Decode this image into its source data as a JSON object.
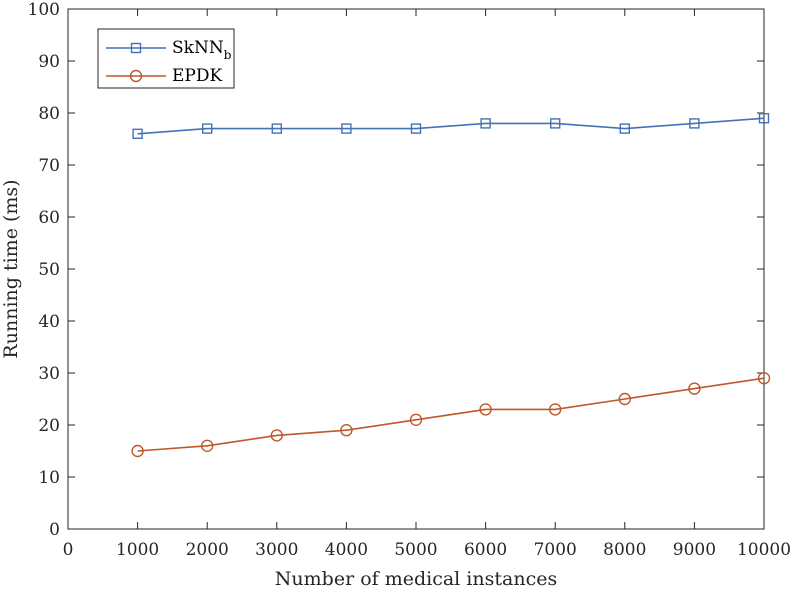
{
  "chart_data": {
    "type": "line",
    "xlabel": "Number of medical instances",
    "ylabel": "Running time (ms)",
    "xlim": [
      0,
      10000
    ],
    "ylim": [
      0,
      100
    ],
    "x": [
      1000,
      2000,
      3000,
      4000,
      5000,
      6000,
      7000,
      8000,
      9000,
      10000
    ],
    "xticks": [
      0,
      1000,
      2000,
      3000,
      4000,
      5000,
      6000,
      7000,
      8000,
      9000,
      10000
    ],
    "yticks": [
      0,
      10,
      20,
      30,
      40,
      50,
      60,
      70,
      80,
      90,
      100
    ],
    "grid": false,
    "legend_position": "top-left",
    "series": [
      {
        "name": "SkNN",
        "name_subscript": "b",
        "marker": "square",
        "color": "#4472b4",
        "values": [
          76,
          77,
          77,
          77,
          77,
          78,
          78,
          77,
          78,
          79
        ]
      },
      {
        "name": "EPDK",
        "marker": "circle",
        "color": "#c0562b",
        "values": [
          15,
          16,
          18,
          19,
          21,
          23,
          23,
          25,
          27,
          29
        ]
      }
    ]
  }
}
